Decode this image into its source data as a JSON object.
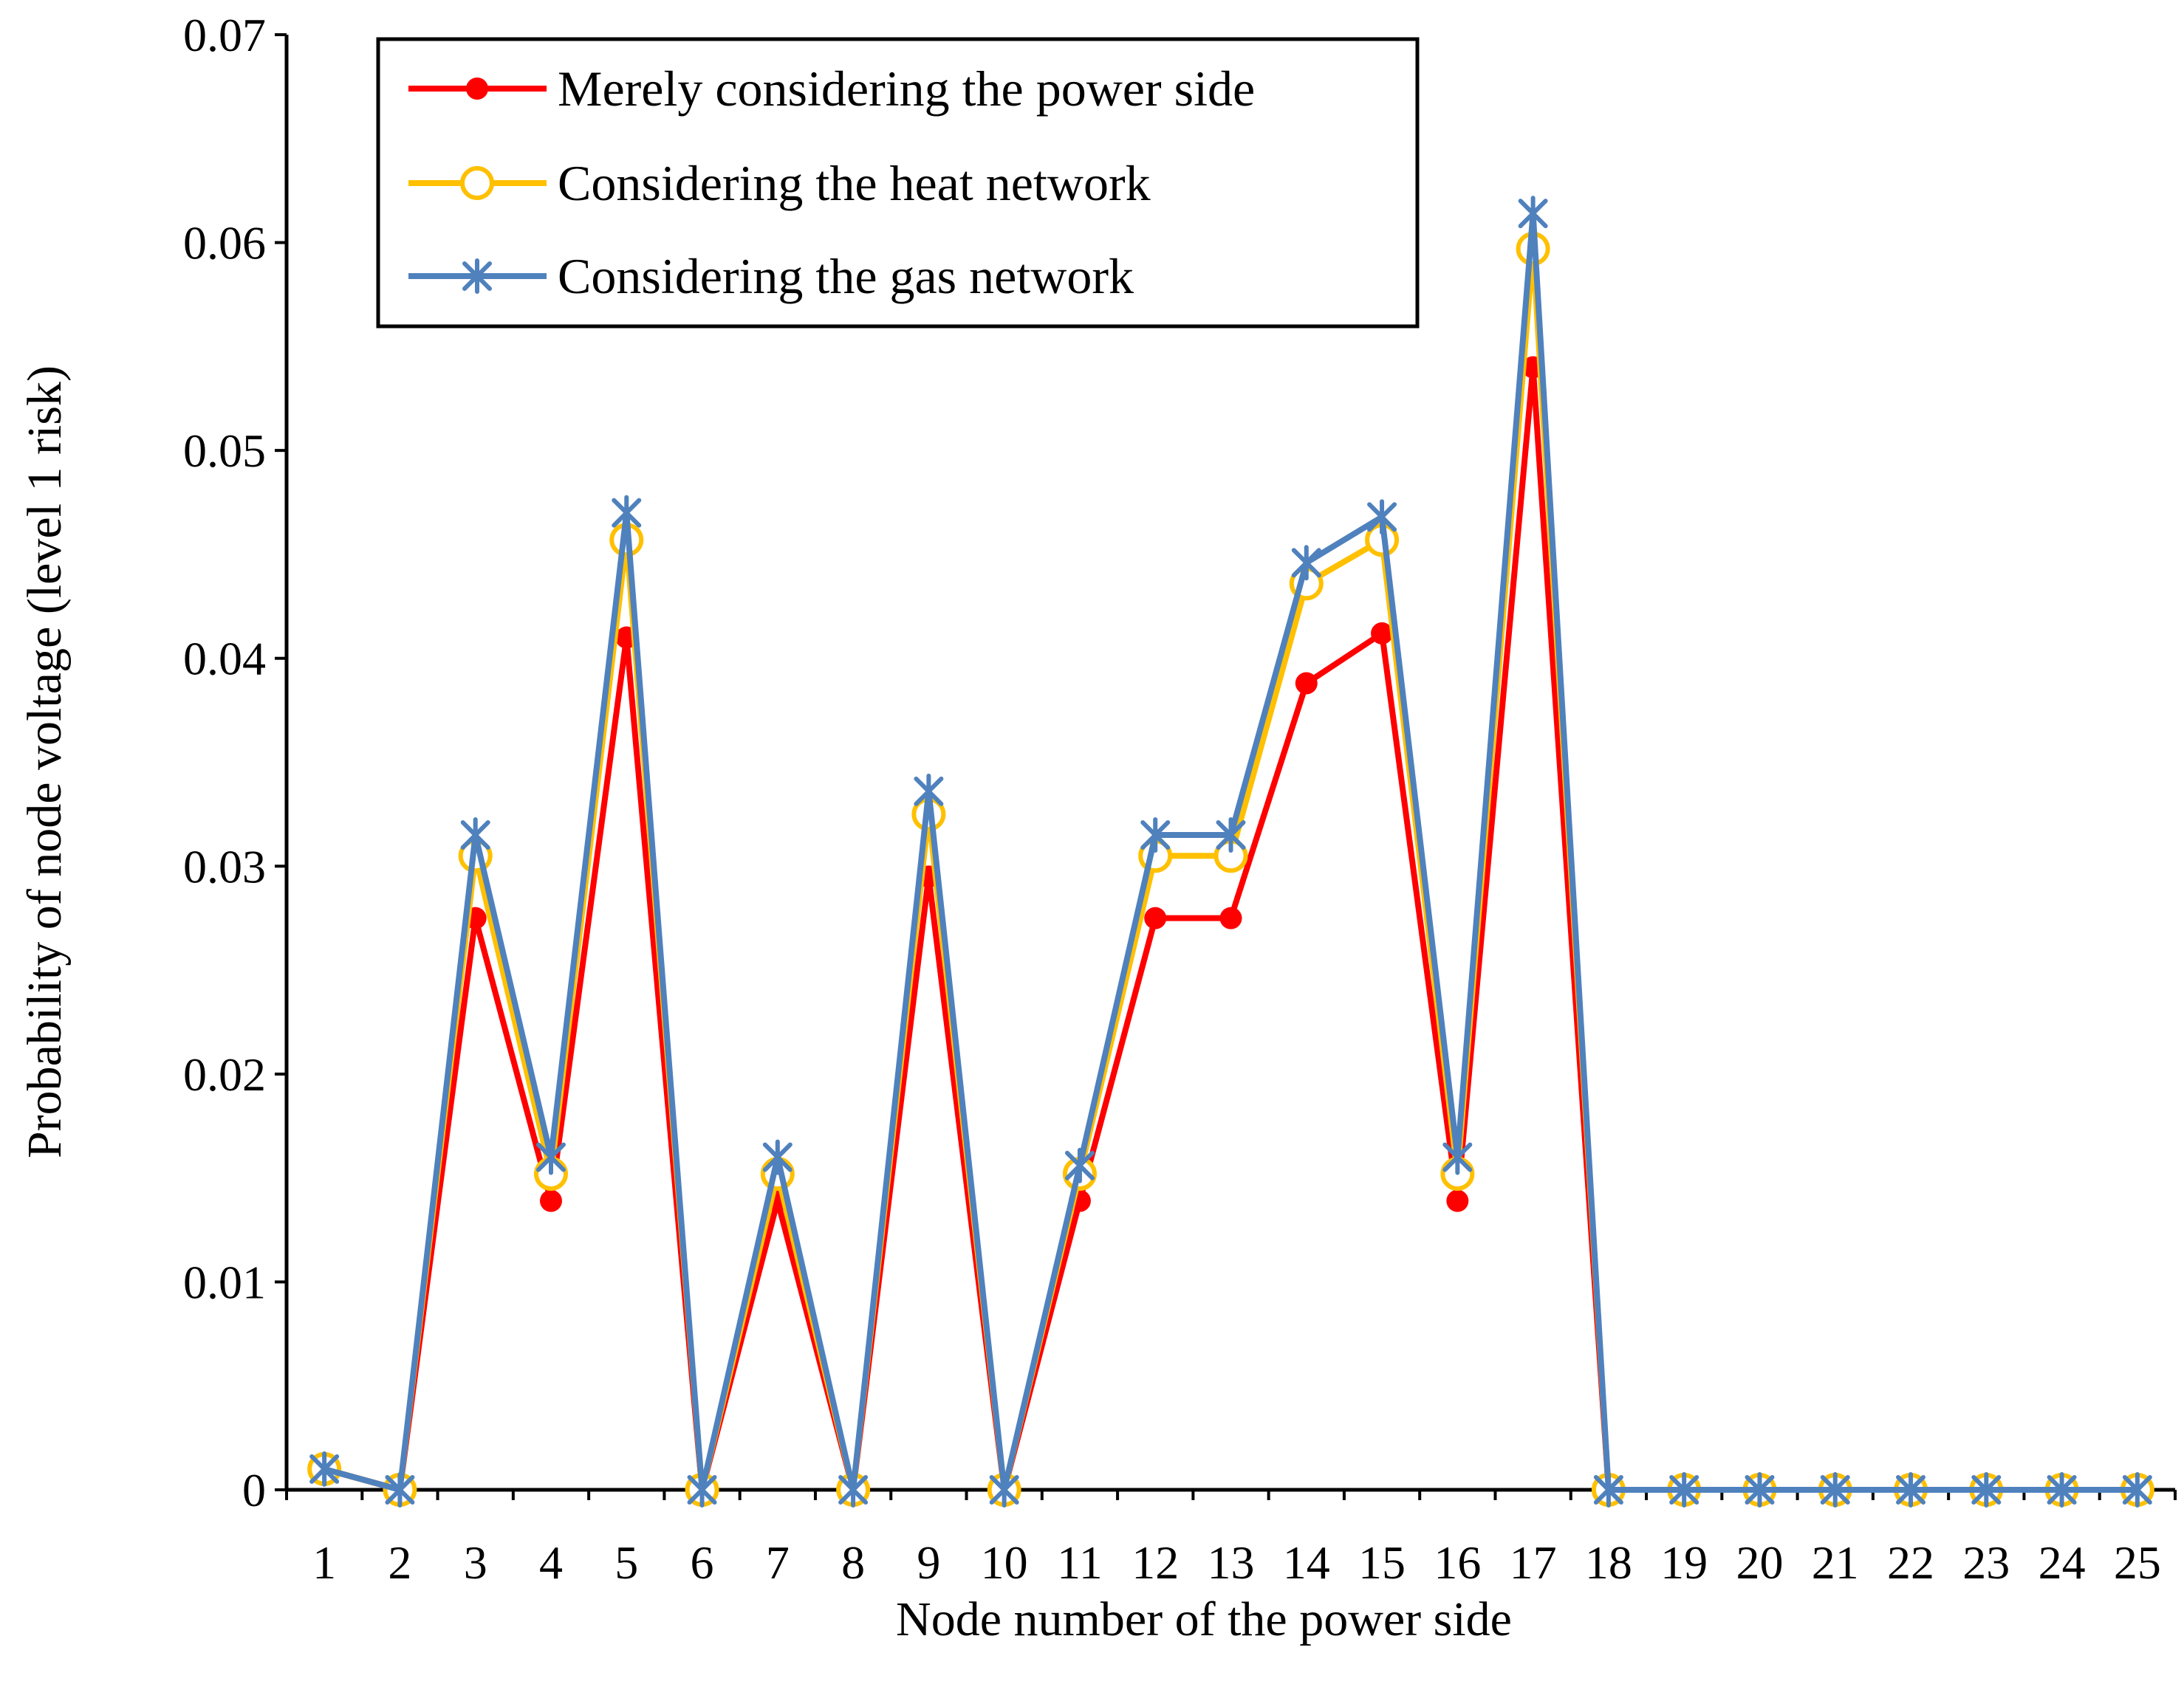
{
  "chart_data": {
    "type": "line",
    "title": "",
    "xlabel": "Node number of the power side",
    "ylabel": "Probability of node voltage (level 1 risk)",
    "categories": [
      "1",
      "2",
      "3",
      "4",
      "5",
      "6",
      "7",
      "8",
      "9",
      "10",
      "11",
      "12",
      "13",
      "14",
      "15",
      "16",
      "17",
      "18",
      "19",
      "20",
      "21",
      "22",
      "23",
      "24",
      "25"
    ],
    "ylim": [
      0,
      0.07
    ],
    "yticks": [
      0,
      0.01,
      0.02,
      0.03,
      0.04,
      0.05,
      0.06,
      0.07
    ],
    "ytick_labels": [
      "0",
      "0.01",
      "0.02",
      "0.03",
      "0.04",
      "0.05",
      "0.06",
      "0.07"
    ],
    "grid": false,
    "legend_position": "top-left",
    "series": [
      {
        "name": "Merely considering the power side",
        "color": "#ff0000",
        "marker": "filled-circle",
        "values": [
          0.001,
          0,
          0.0275,
          0.0139,
          0.041,
          0,
          0.0139,
          0,
          0.0295,
          0,
          0.0139,
          0.0275,
          0.0275,
          0.0388,
          0.0412,
          0.0139,
          0.054,
          0,
          0,
          0,
          0,
          0,
          0,
          0,
          0
        ]
      },
      {
        "name": "Considering the heat network",
        "color": "#ffc000",
        "marker": "open-circle",
        "values": [
          0.001,
          0,
          0.0305,
          0.0152,
          0.0457,
          0,
          0.0152,
          0,
          0.0325,
          0,
          0.0152,
          0.0305,
          0.0305,
          0.0436,
          0.0457,
          0.0152,
          0.0597,
          0,
          0,
          0,
          0,
          0,
          0,
          0,
          0
        ]
      },
      {
        "name": "Considering the gas network",
        "color": "#4f81bd",
        "marker": "star",
        "values": [
          0.001,
          0,
          0.0315,
          0.016,
          0.047,
          0,
          0.016,
          0,
          0.0336,
          0,
          0.0156,
          0.0315,
          0.0315,
          0.0446,
          0.0468,
          0.016,
          0.0614,
          0,
          0,
          0,
          0,
          0,
          0,
          0,
          0
        ]
      }
    ]
  }
}
